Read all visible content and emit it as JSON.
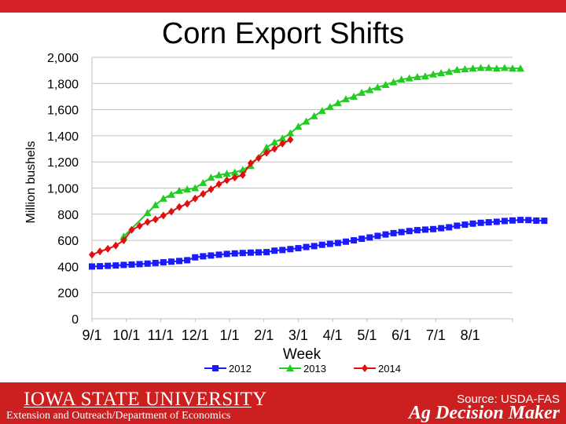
{
  "chart_data": {
    "type": "line",
    "title": "Corn Export Shifts",
    "xlabel": "Week",
    "ylabel": "Million bushels",
    "ylim": [
      0,
      2000
    ],
    "yticks": [
      "0",
      "200",
      "400",
      "600",
      "800",
      "1,000",
      "1,200",
      "1,400",
      "1,600",
      "1,800",
      "2,000"
    ],
    "xticks": [
      "9/1",
      "10/1",
      "11/1",
      "12/1",
      "1/1",
      "2/1",
      "3/1",
      "4/1",
      "5/1",
      "6/1",
      "7/1",
      "8/1"
    ],
    "xlim_weeks": [
      0,
      53
    ],
    "legend_position": "bottom",
    "grid": true,
    "series": [
      {
        "name": "2012",
        "color": "#1a1aff",
        "marker": "square",
        "values": [
          400,
          402,
          405,
          408,
          412,
          415,
          418,
          422,
          427,
          432,
          437,
          442,
          448,
          470,
          478,
          484,
          490,
          496,
          500,
          503,
          506,
          508,
          510,
          521,
          526,
          533,
          540,
          549,
          556,
          566,
          573,
          580,
          590,
          600,
          612,
          622,
          634,
          645,
          655,
          663,
          671,
          678,
          682,
          686,
          693,
          700,
          712,
          720,
          728,
          734,
          738,
          742,
          748,
          752,
          756,
          755,
          751,
          750
        ]
      },
      {
        "name": "2013",
        "color": "#22cc22",
        "marker": "triangle",
        "values": [
          null,
          null,
          null,
          null,
          630,
          null,
          null,
          810,
          870,
          920,
          950,
          980,
          990,
          1000,
          1040,
          1080,
          1100,
          1110,
          1120,
          1140,
          1170,
          null,
          1310,
          1350,
          1380,
          1420,
          1470,
          1510,
          1550,
          1590,
          1620,
          1650,
          1680,
          1700,
          1730,
          1750,
          1770,
          1790,
          1810,
          1830,
          1840,
          1850,
          1855,
          1870,
          1880,
          1890,
          1905,
          1910,
          1915,
          1920,
          1920,
          1915,
          1920,
          1915,
          1915
        ]
      },
      {
        "name": "2014",
        "color": "#e01010",
        "marker": "diamond",
        "values": [
          490,
          515,
          535,
          560,
          600,
          680,
          710,
          740,
          760,
          790,
          820,
          855,
          880,
          920,
          955,
          990,
          1030,
          1060,
          1080,
          1100,
          1190,
          1230,
          1270,
          1300,
          1340,
          1370
        ]
      }
    ]
  },
  "footer": {
    "university": "IOWA STATE UNIVERSITY",
    "department": "Extension and Outreach/Department of Economics",
    "source": "Source: USDA-FAS",
    "brand": "Ag Decision Maker"
  }
}
